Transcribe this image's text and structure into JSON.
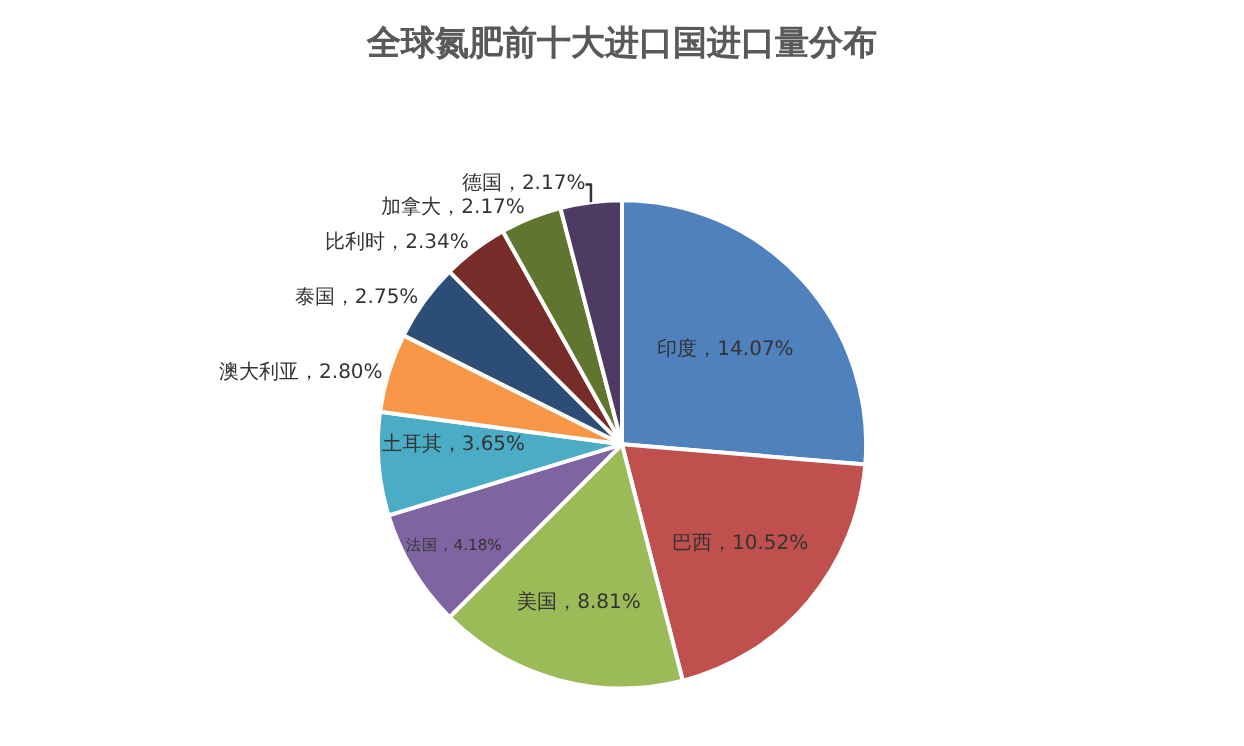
{
  "chart_data": {
    "type": "pie",
    "title": "全球氮肥前十大进口国进口量分布",
    "categories": [
      "印度",
      "巴西",
      "美国",
      "法国",
      "土耳其",
      "澳大利亚",
      "泰国",
      "比利时",
      "加拿大",
      "德国"
    ],
    "values": [
      14.07,
      10.52,
      8.81,
      4.18,
      3.65,
      2.8,
      2.75,
      2.34,
      2.17,
      2.17
    ],
    "value_labels": [
      "14.07%",
      "10.52%",
      "8.81%",
      "4.18%",
      "3.65%",
      "2.80%",
      "2.75%",
      "2.34%",
      "2.17%",
      "2.17%"
    ],
    "colors": [
      "#4f81bd",
      "#c0504d",
      "#9bbb59",
      "#8064a2",
      "#4bacc6",
      "#f79646",
      "#2c4d75",
      "#772c2a",
      "#5f7530",
      "#4d3b62"
    ],
    "legend": false
  }
}
